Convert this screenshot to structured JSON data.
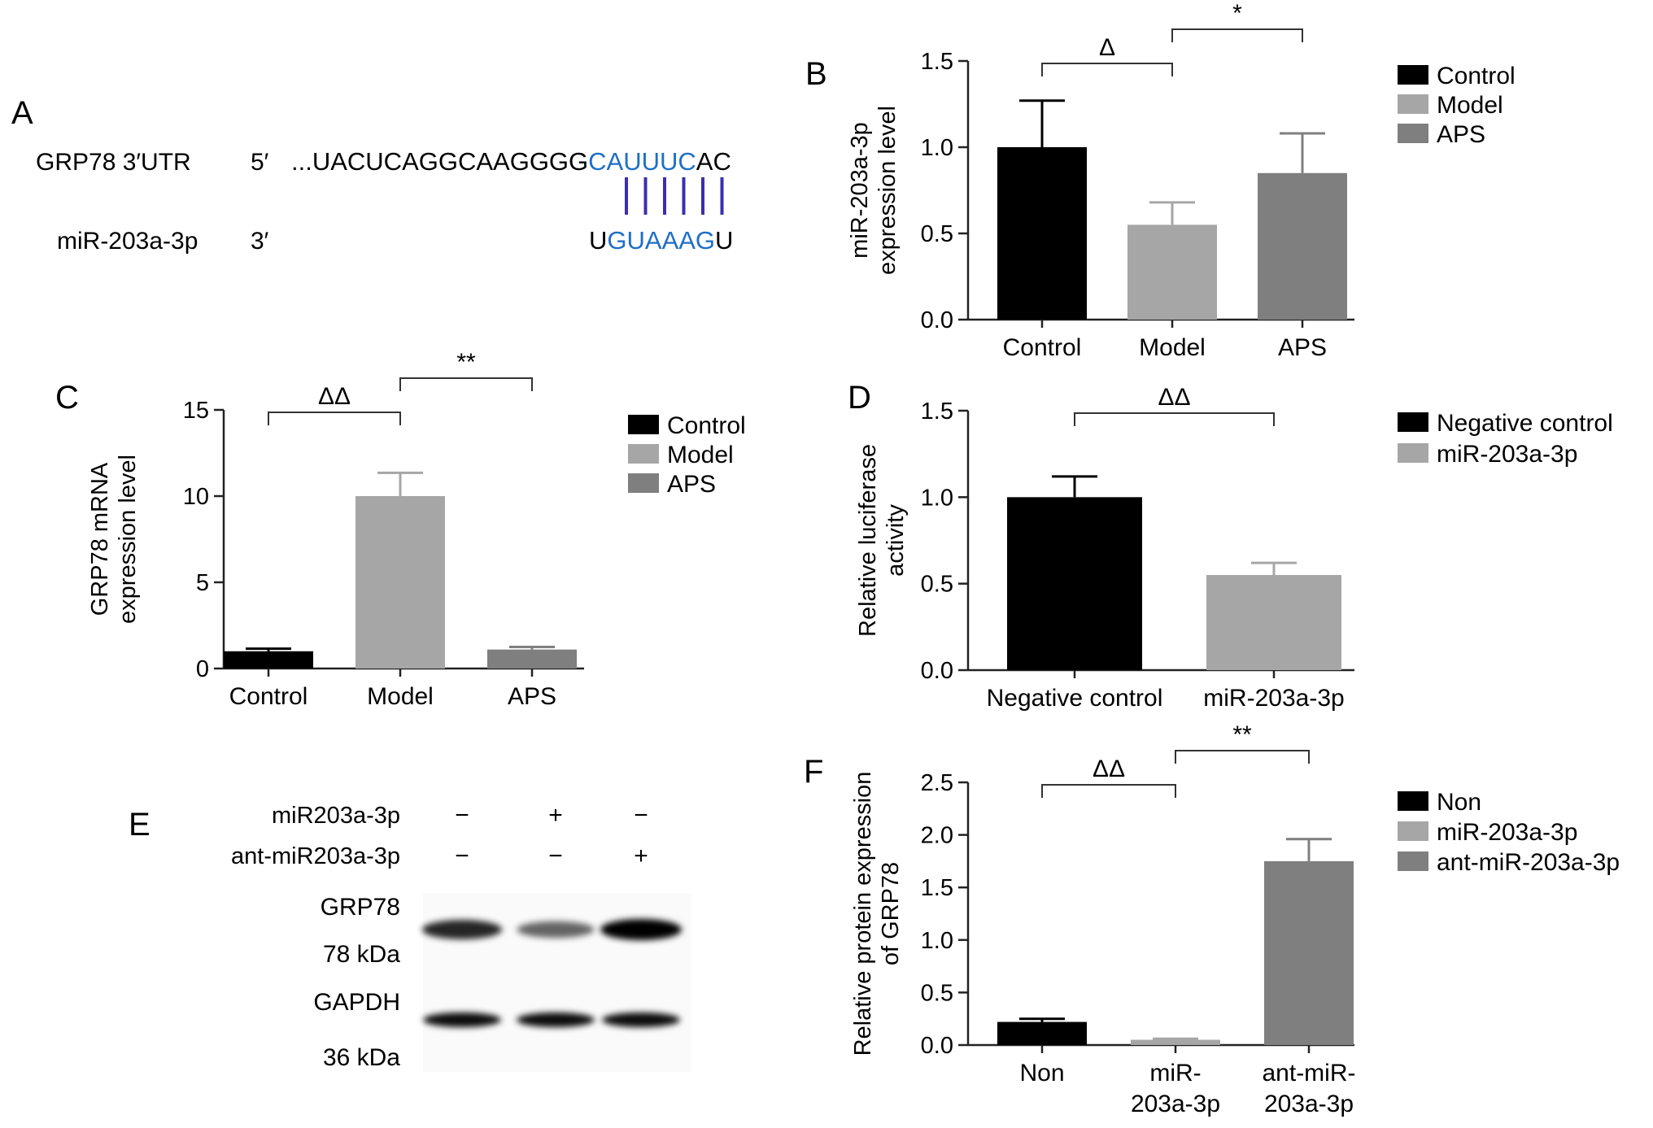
{
  "panel_a": {
    "letter": "A",
    "row1_label": "GRP78 3′UTR",
    "row1_end": "5′",
    "row1_seq_pre": "...UACUCAGGCAAGGGG",
    "row1_seq_match": "CAUUUC",
    "row1_seq_post": "AC",
    "row2_label": "miR-203a-3p",
    "row2_end": "3′",
    "row2_seq_pre": "U",
    "row2_seq_match": "GUAAAG",
    "row2_seq_post": "U",
    "pair_count": 6,
    "match_color": "#1f6fc7",
    "pair_color": "#3a2fb0"
  },
  "panel_e": {
    "letter": "E",
    "row_labels": [
      "miR203a-3p",
      "ant-miR203a-3p"
    ],
    "row_signs": [
      [
        "−",
        "+",
        "−"
      ],
      [
        "−",
        "−",
        "+"
      ]
    ],
    "protein_labels": [
      "GRP78",
      "78 kDa",
      "GAPDH",
      "36 kDa"
    ],
    "grp78_band_intensity": [
      0.85,
      0.6,
      1.0
    ],
    "gapdh_band_intensity": [
      0.95,
      0.95,
      0.95
    ]
  },
  "chart_data": [
    {
      "panel": "B",
      "type": "bar",
      "categories": [
        "Control",
        "Model",
        "APS"
      ],
      "values": [
        1.0,
        0.55,
        0.85
      ],
      "errors": [
        0.27,
        0.13,
        0.23
      ],
      "colors": [
        "#000000",
        "#a6a6a6",
        "#7f7f7f"
      ],
      "ylabel": [
        "miR-203a-3p",
        "expression level"
      ],
      "ylim": [
        0,
        1.5
      ],
      "yticks": [
        "0.0",
        "0.5",
        "1.0",
        "1.5"
      ],
      "legend": [
        "Control",
        "Model",
        "APS"
      ],
      "significance": [
        {
          "from": 0,
          "to": 1,
          "label": "Δ"
        },
        {
          "from": 1,
          "to": 2,
          "label": "*"
        }
      ]
    },
    {
      "panel": "C",
      "type": "bar",
      "categories": [
        "Control",
        "Model",
        "APS"
      ],
      "values": [
        1.0,
        10.0,
        1.1
      ],
      "errors": [
        0.15,
        1.35,
        0.15
      ],
      "colors": [
        "#000000",
        "#a6a6a6",
        "#7f7f7f"
      ],
      "ylabel": [
        "GRP78 mRNA",
        "expression level"
      ],
      "ylim": [
        0,
        15
      ],
      "yticks": [
        "0",
        "5",
        "10",
        "15"
      ],
      "legend": [
        "Control",
        "Model",
        "APS"
      ],
      "significance": [
        {
          "from": 0,
          "to": 1,
          "label": "ΔΔ"
        },
        {
          "from": 1,
          "to": 2,
          "label": "**"
        }
      ]
    },
    {
      "panel": "D",
      "type": "bar",
      "categories": [
        "Negative control",
        "miR-203a-3p"
      ],
      "values": [
        1.0,
        0.55
      ],
      "errors": [
        0.12,
        0.07
      ],
      "colors": [
        "#000000",
        "#a6a6a6"
      ],
      "ylabel": [
        "Relative luciferase",
        "activity"
      ],
      "ylim": [
        0,
        1.5
      ],
      "yticks": [
        "0.0",
        "0.5",
        "1.0",
        "1.5"
      ],
      "legend": [
        "Negative control",
        "miR-203a-3p"
      ],
      "significance": [
        {
          "from": 0,
          "to": 1,
          "label": "ΔΔ"
        }
      ]
    },
    {
      "panel": "F",
      "type": "bar",
      "categories": [
        [
          "Non"
        ],
        [
          "miR-",
          "203a-3p"
        ],
        [
          "ant-miR-",
          "203a-3p"
        ]
      ],
      "values": [
        0.22,
        0.05,
        1.75
      ],
      "errors": [
        0.03,
        0.01,
        0.21
      ],
      "colors": [
        "#000000",
        "#a6a6a6",
        "#7f7f7f"
      ],
      "ylabel": [
        "Relative protein expression",
        "of GRP78"
      ],
      "ylim": [
        0,
        2.5
      ],
      "yticks": [
        "0.0",
        "0.5",
        "1.0",
        "1.5",
        "2.0",
        "2.5"
      ],
      "legend": [
        "Non",
        "miR-203a-3p",
        "ant-miR-203a-3p"
      ],
      "significance": [
        {
          "from": 0,
          "to": 1,
          "label": "ΔΔ"
        },
        {
          "from": 1,
          "to": 2,
          "label": "**"
        }
      ]
    }
  ]
}
